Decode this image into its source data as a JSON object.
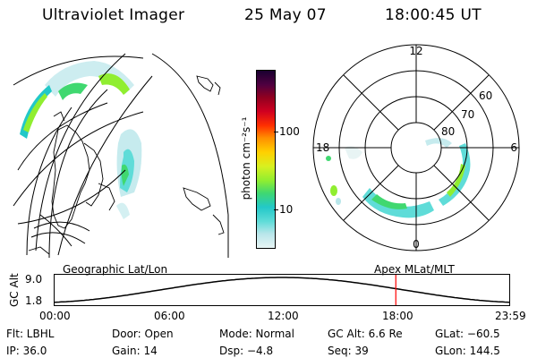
{
  "header": {
    "instrument": "Ultraviolet Imager",
    "date": "25 May 07",
    "time": "18:00:45 UT"
  },
  "colorbar": {
    "unit_label": "photon cm⁻²s⁻¹",
    "ticks": [
      "100",
      "10"
    ],
    "colors": [
      "#e8f4f4",
      "#b8e6ea",
      "#5fdcd8",
      "#22c8c8",
      "#40d870",
      "#90ee30",
      "#d8f020",
      "#ffd000",
      "#ff9000",
      "#ff3000",
      "#d00020",
      "#900020",
      "#500040",
      "#1a0030"
    ]
  },
  "left_map": {
    "projection_label": "Geographic Lat/Lon"
  },
  "polar_plot": {
    "mlt_labels": {
      "top": "12",
      "right": "6",
      "bottom": "0",
      "left": "18"
    },
    "lat_labels": [
      "60",
      "70",
      "80"
    ],
    "projection_label": "Apex MLat/MLT"
  },
  "timeline": {
    "y_label": "GC Alt",
    "y_ticks": [
      "9.0",
      "1.8"
    ],
    "x_ticks": [
      "00:00",
      "06:00",
      "12:00",
      "18:00",
      "23:59"
    ],
    "current_time_fraction": 0.7505
  },
  "info": {
    "filter": "Flt: LBHL",
    "door": "Door: Open",
    "mode": "Mode: Normal",
    "gc_alt": "GC Alt: 6.6 Re",
    "glat": "GLat: −60.5",
    "ip": "IP: 36.0",
    "gain": "Gain: 14",
    "dsp": "Dsp:    −4.8",
    "seq": "Seq: 39",
    "glon": "GLon: 144.5"
  }
}
